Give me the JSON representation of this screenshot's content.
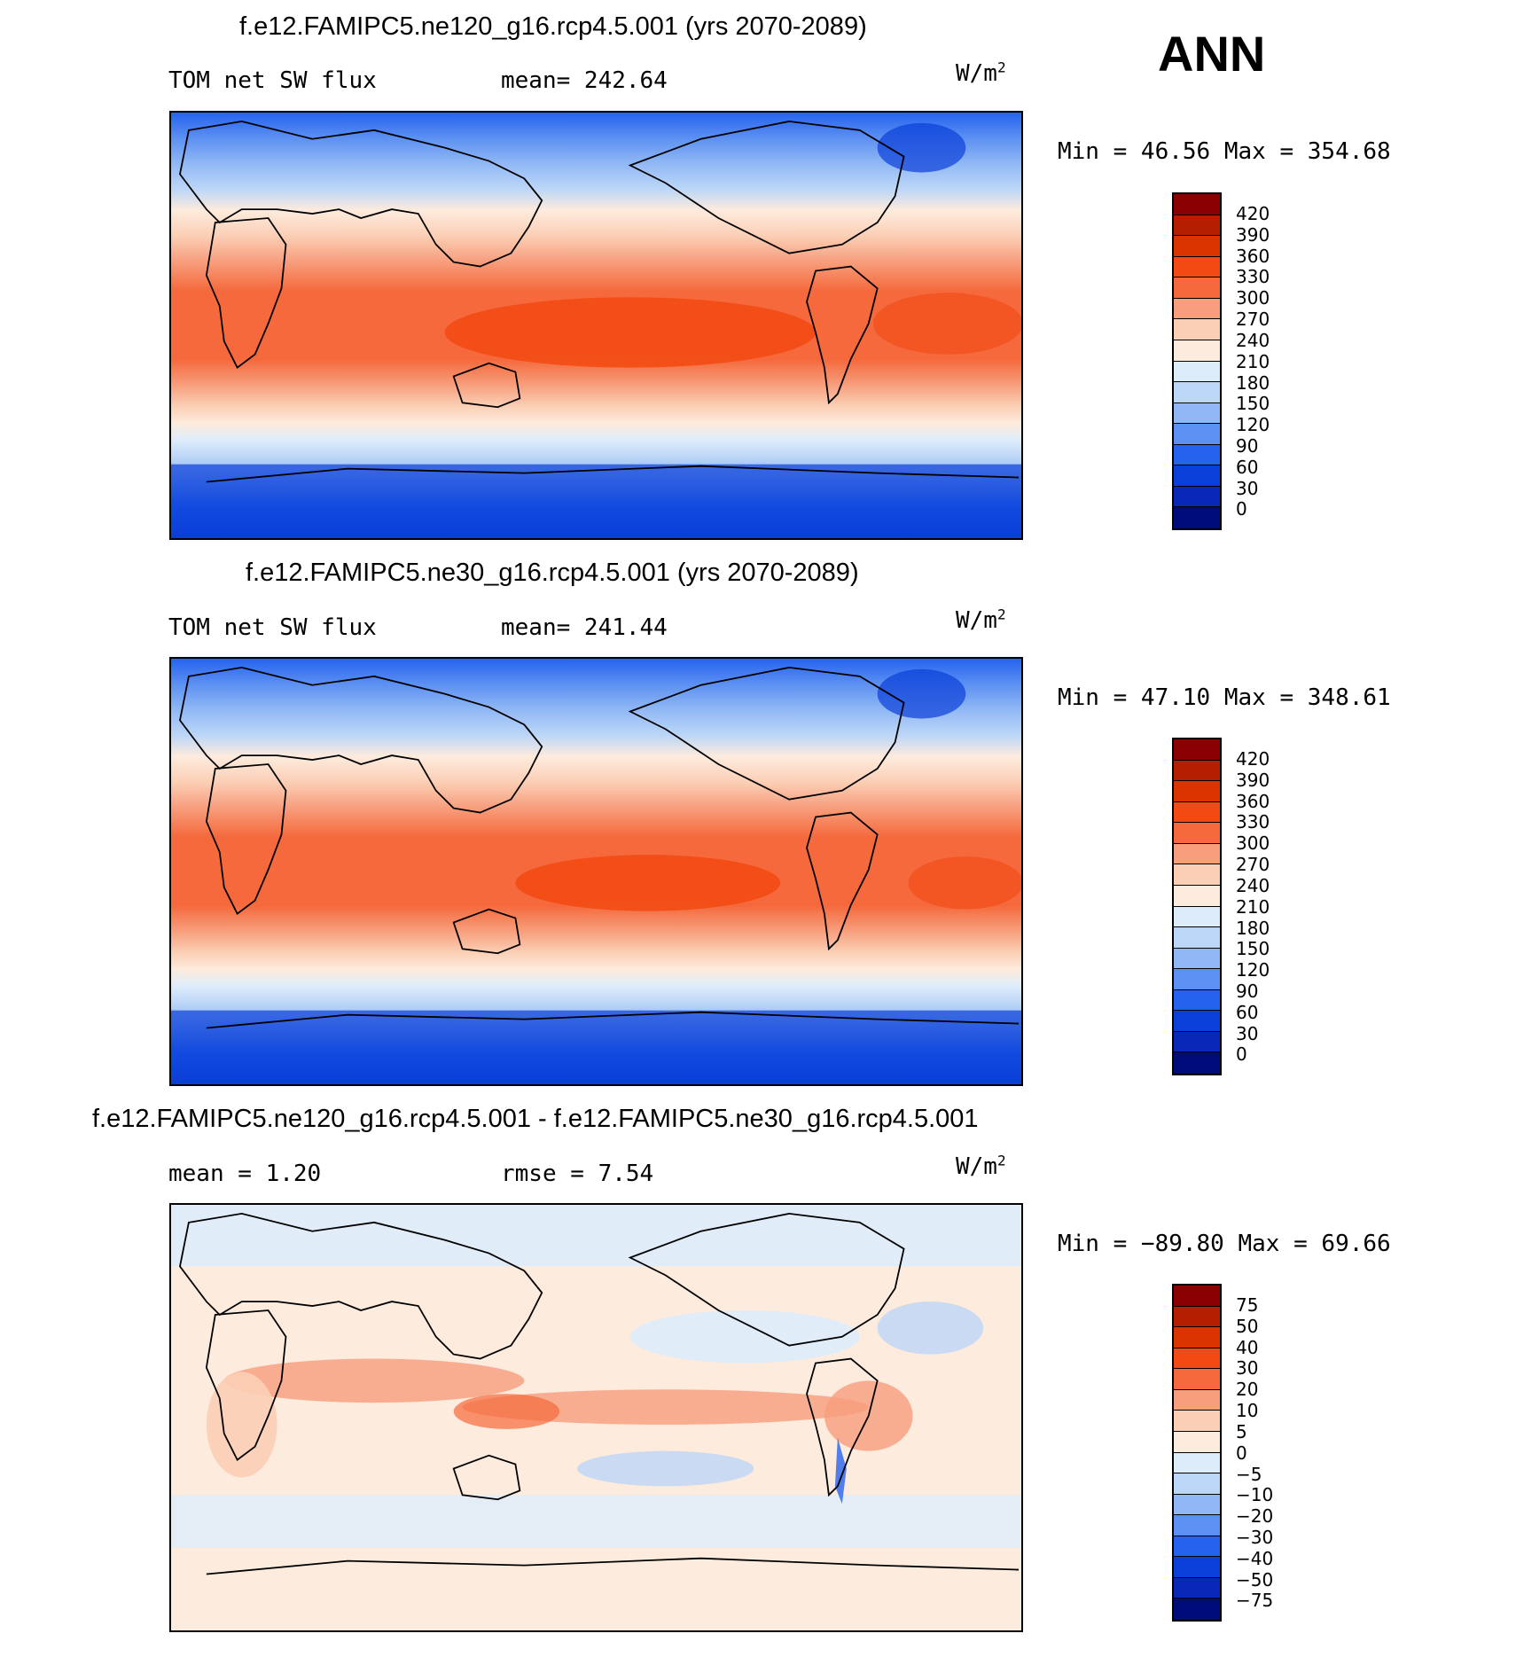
{
  "season": "ANN",
  "units_base": "W/m",
  "units_exp": "2",
  "panels": [
    {
      "title": "f.e12.FAMIPC5.ne120_g16.rcp4.5.001 (yrs 2070-2089)",
      "left_text": "TOM net SW flux",
      "stat_text": "mean= 242.64",
      "minmax": "Min =   46.56 Max = 354.68",
      "colorbar": {
        "labels": [
          "420",
          "390",
          "360",
          "330",
          "300",
          "270",
          "240",
          "210",
          "180",
          "150",
          "120",
          "90",
          "60",
          "30",
          "0"
        ],
        "colors": [
          "#8b0000",
          "#b51f00",
          "#d93400",
          "#f24a12",
          "#f5693c",
          "#f79e7d",
          "#fbcfb5",
          "#fdebdd",
          "#ddecfb",
          "#bcd6f7",
          "#91b8f5",
          "#5c90f2",
          "#2563ef",
          "#0a3fd9",
          "#0a28b8",
          "#000b7a"
        ]
      }
    },
    {
      "title": "f.e12.FAMIPC5.ne30_g16.rcp4.5.001 (yrs 2070-2089)",
      "left_text": "TOM net SW flux",
      "stat_text": "mean= 241.44",
      "minmax": "Min =   47.10 Max = 348.61",
      "colorbar": {
        "labels": [
          "420",
          "390",
          "360",
          "330",
          "300",
          "270",
          "240",
          "210",
          "180",
          "150",
          "120",
          "90",
          "60",
          "30",
          "0"
        ],
        "colors": [
          "#8b0000",
          "#b51f00",
          "#d93400",
          "#f24a12",
          "#f5693c",
          "#f79e7d",
          "#fbcfb5",
          "#fdebdd",
          "#ddecfb",
          "#bcd6f7",
          "#91b8f5",
          "#5c90f2",
          "#2563ef",
          "#0a3fd9",
          "#0a28b8",
          "#000b7a"
        ]
      }
    },
    {
      "title": "f.e12.FAMIPC5.ne120_g16.rcp4.5.001 - f.e12.FAMIPC5.ne30_g16.rcp4.5.001",
      "left_text": "mean =    1.20",
      "stat_text": "rmse =    7.54",
      "minmax": "Min = −89.80 Max =   69.66",
      "colorbar": {
        "labels": [
          "75",
          "50",
          "40",
          "30",
          "20",
          "10",
          "5",
          "0",
          "−5",
          "−10",
          "−20",
          "−30",
          "−40",
          "−50",
          "−75"
        ],
        "colors": [
          "#8b0000",
          "#b51f00",
          "#d93400",
          "#f24a12",
          "#f5693c",
          "#f79e7d",
          "#fbcfb5",
          "#fdebdd",
          "#ddecfb",
          "#bcd6f7",
          "#91b8f5",
          "#5c90f2",
          "#2563ef",
          "#0a3fd9",
          "#0a28b8",
          "#000b7a"
        ]
      }
    }
  ]
}
